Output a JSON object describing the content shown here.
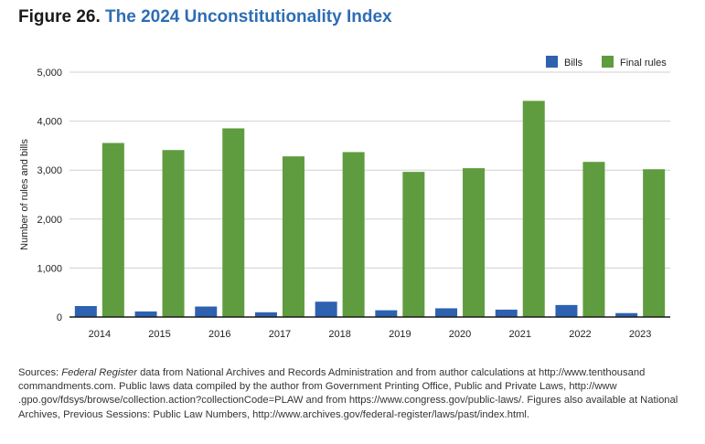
{
  "figure": {
    "label": "Figure 26.",
    "title": "The 2024 Unconstitutionality Index"
  },
  "colors": {
    "bills": "#2e62b0",
    "final_rules": "#5f9c3f",
    "title_accent": "#2e6db4"
  },
  "chart_data": {
    "type": "bar",
    "title": "The 2024 Unconstitutionality Index",
    "xlabel": "",
    "ylabel": "Number of rules and bills",
    "categories": [
      "2014",
      "2015",
      "2016",
      "2017",
      "2018",
      "2019",
      "2020",
      "2021",
      "2022",
      "2023"
    ],
    "series": [
      {
        "name": "Bills",
        "color": "#2e62b0",
        "values": [
          224,
          114,
          214,
          97,
          313,
          138,
          178,
          151,
          245,
          80
        ]
      },
      {
        "name": "Final rules",
        "color": "#5f9c3f",
        "values": [
          3554,
          3410,
          3853,
          3281,
          3368,
          2964,
          3039,
          4414,
          3168,
          3018
        ]
      }
    ],
    "ylim": [
      0,
      5000
    ],
    "yticks": [
      0,
      1000,
      2000,
      3000,
      4000,
      5000
    ],
    "ytick_labels": [
      "0",
      "1,000",
      "2,000",
      "3,000",
      "4,000",
      "5,000"
    ],
    "grid": true,
    "legend": "top-right"
  },
  "sources": {
    "prefix": "Sources: ",
    "italic": "Federal Register",
    "text": " data from National Archives and Records Administration and from author calculations at http://www.tenthousand commandments.com. Public laws data compiled by the author from Government Printing Office, Public and Private Laws, http://www .gpo.gov/fdsys/browse/collection.action?collectionCode=PLAW and from https://www.congress.gov/public-laws/. Figures also available at National Archives, Previous Sessions: Public Law Numbers, http://www.archives.gov/federal-register/laws/past/index.html."
  }
}
